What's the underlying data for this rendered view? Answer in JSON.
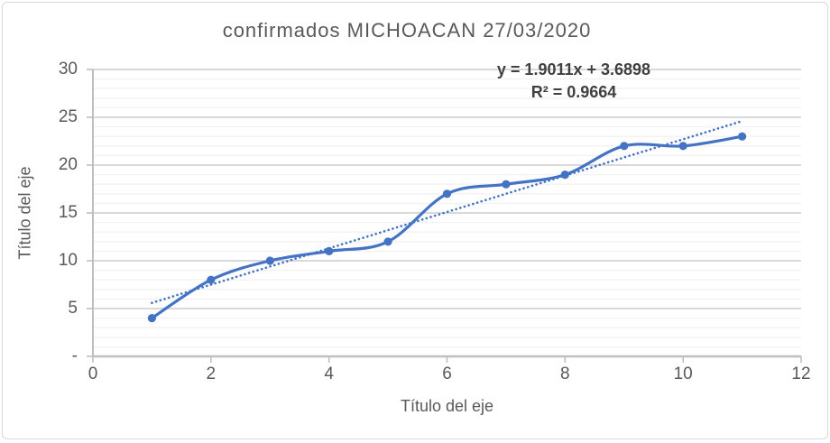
{
  "chart": {
    "title": "confirmados MICHOACAN 27/03/2020",
    "trendline_equation": "y = 1.9011x + 3.6898",
    "trendline_r2": "R² = 0.9664",
    "x_axis_title": "Título del eje",
    "y_axis_title": "Título del eje"
  },
  "colors": {
    "series_blue": "#4472C4",
    "trendline_blue": "#4472C4",
    "title_text": "#595959",
    "axis_text": "#595959",
    "equation_text": "#404040",
    "major_gridline": "#D9D9D9",
    "minor_gridline": "#F2F2F2",
    "axis_line": "#BFBFBF",
    "chart_border": "#D9D9D9",
    "background": "#FFFFFF"
  },
  "chart_data": {
    "type": "line",
    "title": "confirmados MICHOACAN 27/03/2020",
    "xlabel": "Título del eje",
    "ylabel": "Título del eje",
    "x": [
      1,
      2,
      3,
      4,
      5,
      6,
      7,
      8,
      9,
      10,
      11
    ],
    "series": [
      {
        "name": "confirmados",
        "values": [
          4,
          8,
          10,
          11,
          12,
          17,
          18,
          19,
          22,
          22,
          23
        ],
        "color": "#4472C4",
        "marker": "circle",
        "smoothed": true
      }
    ],
    "trendline": {
      "type": "linear",
      "slope": 1.9011,
      "intercept": 3.6898,
      "r_squared": 0.9664,
      "equation_label": "y = 1.9011x + 3.6898",
      "r2_label": "R² = 0.9664",
      "style": "dotted",
      "color": "#4472C4",
      "x_range": [
        1,
        11
      ]
    },
    "xlim": [
      0,
      12
    ],
    "ylim": [
      0,
      30
    ],
    "x_ticks": [
      0,
      2,
      4,
      6,
      8,
      10,
      12
    ],
    "x_tick_labels": [
      "0",
      "2",
      "4",
      "6",
      "8",
      "10",
      "12"
    ],
    "y_ticks": [
      0,
      5,
      10,
      15,
      20,
      25,
      30
    ],
    "y_tick_labels": [
      "-",
      "5",
      "10",
      "15",
      "20",
      "25",
      "30"
    ],
    "y_minor_step": 1,
    "grid": {
      "major": true,
      "minor": true,
      "orientation": "horizontal"
    },
    "legend": "none"
  }
}
